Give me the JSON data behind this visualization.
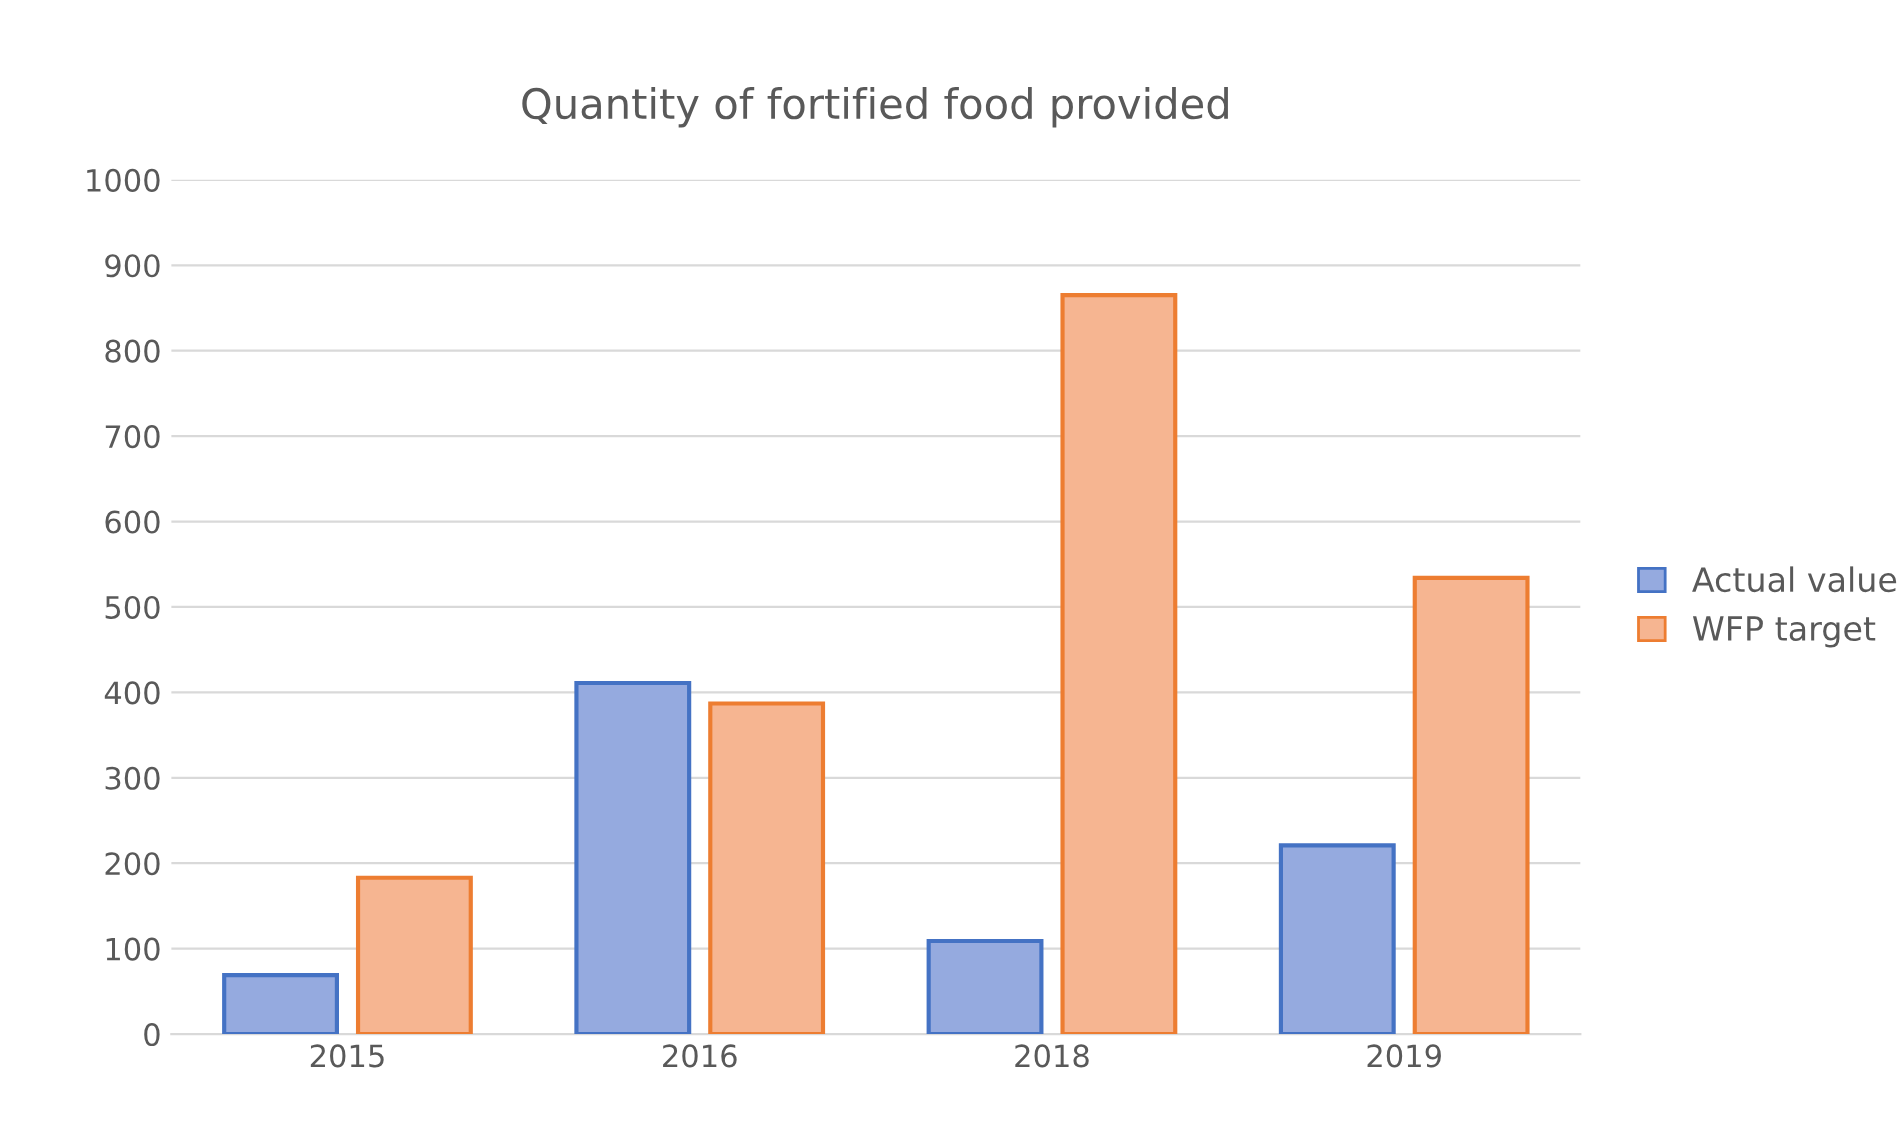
{
  "chart_data": {
    "type": "bar",
    "title": "Quantity of fortified food provided",
    "categories": [
      "2015",
      "2016",
      "2018",
      "2019"
    ],
    "series": [
      {
        "name": "Actual value",
        "color": "#95aadf",
        "values": [
          69,
          411,
          109,
          221
        ]
      },
      {
        "name": "WFP target",
        "color": "#f6b591",
        "values": [
          183,
          387,
          865,
          534
        ]
      }
    ],
    "ylim": [
      0,
      1000
    ],
    "yticks": [
      0,
      100,
      200,
      300,
      400,
      500,
      600,
      700,
      800,
      900,
      1000
    ],
    "grid": "y",
    "legend": "right"
  }
}
